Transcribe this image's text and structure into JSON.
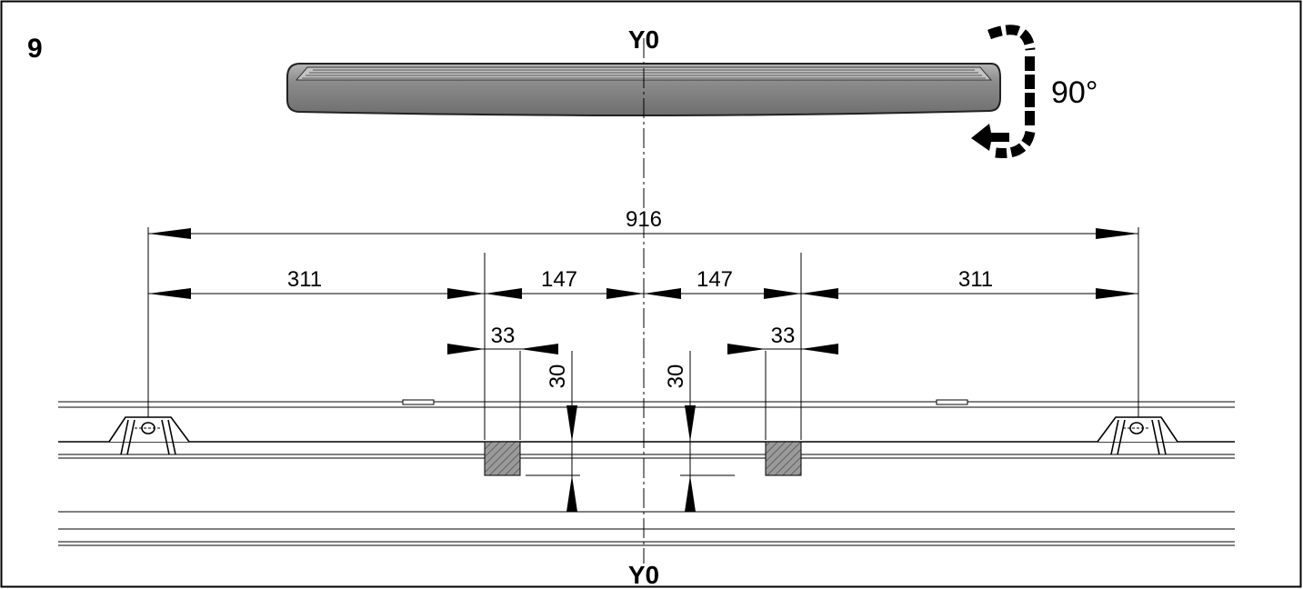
{
  "figure": {
    "step_number": "9",
    "axis_label_top": "Y0",
    "axis_label_bottom": "Y0",
    "rotation_label": "90°"
  },
  "dimensions": {
    "overall": "916",
    "left_outer": "311",
    "left_inner": "147",
    "right_inner": "147",
    "right_outer": "311",
    "left_block_width": "33",
    "right_block_width": "33",
    "left_offset": "30",
    "right_offset": "30"
  },
  "colors": {
    "line": "#000000",
    "board_fill": "#8a8a8a",
    "block_fill": "#9a9a9a"
  },
  "icons": [
    "rotate-90-icon"
  ]
}
